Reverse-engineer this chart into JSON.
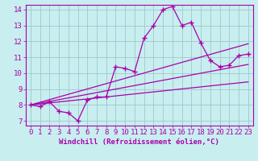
{
  "xlabel": "Windchill (Refroidissement éolien,°C)",
  "bg_color": "#c8eef0",
  "line_color": "#aa00aa",
  "xlim": [
    -0.5,
    23.5
  ],
  "ylim": [
    6.7,
    14.3
  ],
  "xticks": [
    0,
    1,
    2,
    3,
    4,
    5,
    6,
    7,
    8,
    9,
    10,
    11,
    12,
    13,
    14,
    15,
    16,
    17,
    18,
    19,
    20,
    21,
    22,
    23
  ],
  "yticks": [
    7,
    8,
    9,
    10,
    11,
    12,
    13,
    14
  ],
  "main_x": [
    0,
    1,
    2,
    3,
    4,
    5,
    6,
    7,
    8,
    9,
    10,
    11,
    12,
    13,
    14,
    15,
    16,
    17,
    18,
    19,
    20,
    21,
    22,
    23
  ],
  "main_y": [
    8.0,
    7.9,
    8.2,
    7.6,
    7.5,
    7.0,
    8.3,
    8.5,
    8.5,
    10.4,
    10.3,
    10.1,
    12.2,
    13.0,
    14.0,
    14.2,
    13.0,
    13.2,
    11.9,
    10.8,
    10.4,
    10.5,
    11.1,
    11.2
  ],
  "line1_x": [
    0,
    23
  ],
  "line1_y": [
    8.0,
    11.85
  ],
  "line2_x": [
    0,
    23
  ],
  "line2_y": [
    8.0,
    10.55
  ],
  "line3_x": [
    0,
    23
  ],
  "line3_y": [
    8.0,
    9.45
  ],
  "grid_color": "#9ec8cc",
  "font_color": "#aa00aa",
  "font_family": "monospace",
  "tick_fontsize": 6.5,
  "xlabel_fontsize": 6.5
}
